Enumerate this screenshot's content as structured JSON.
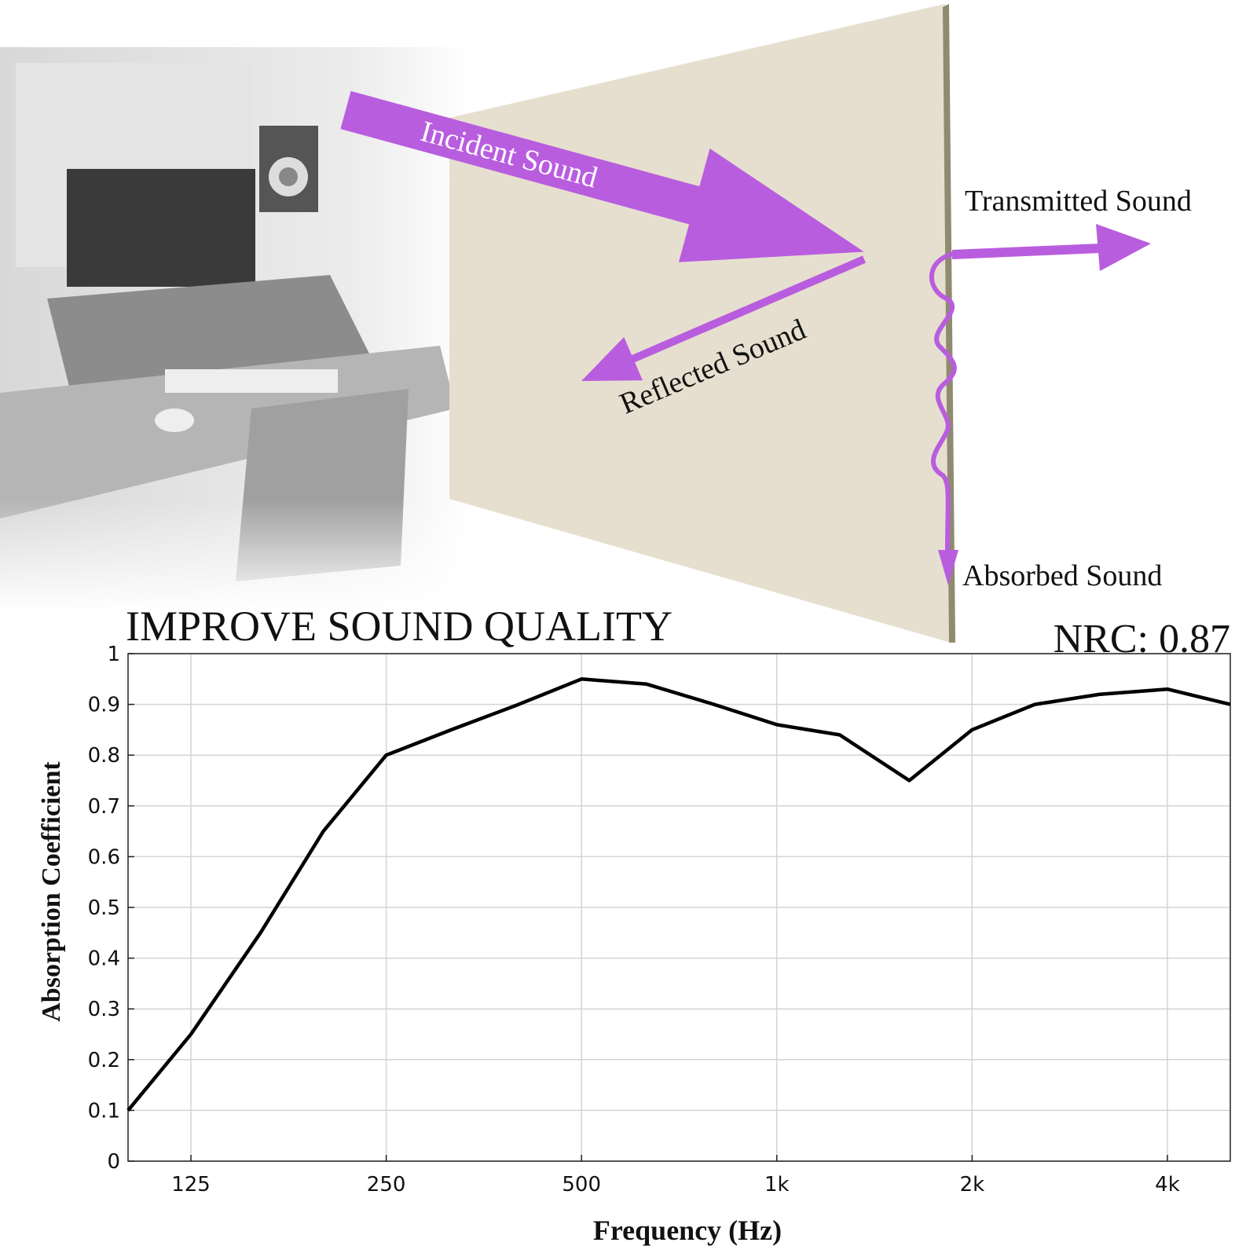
{
  "diagram": {
    "incident": "Incident Sound",
    "transmitted": "Transmitted Sound",
    "reflected": "Reflected Sound",
    "absorbed": "Absorbed Sound"
  },
  "chart_data": {
    "type": "line",
    "title": "IMPROVE SOUND QUALITY",
    "annotation": "NRC: 0.87",
    "x_label": "Frequency (Hz)",
    "y_label": "Absorption Coefficient",
    "x": [
      100,
      125,
      160,
      200,
      250,
      315,
      400,
      500,
      630,
      800,
      1000,
      1250,
      1600,
      2000,
      2500,
      3150,
      4000,
      5000
    ],
    "values": [
      0.1,
      0.25,
      0.45,
      0.65,
      0.8,
      0.85,
      0.9,
      0.95,
      0.94,
      0.9,
      0.86,
      0.84,
      0.75,
      0.85,
      0.9,
      0.92,
      0.93,
      0.9
    ],
    "color": "#000000",
    "xscale": "log",
    "grid": true,
    "xlim": [
      100,
      5000
    ],
    "xticks": [
      125,
      250,
      500,
      {
        "value": 1000,
        "label": "1k"
      },
      {
        "value": 2000,
        "label": "2k"
      },
      {
        "value": 4000,
        "label": "4k"
      }
    ],
    "ylim": [
      0,
      1
    ],
    "yticks": [
      0,
      0.1,
      0.2,
      0.3,
      0.4,
      0.5,
      0.6,
      0.7,
      0.8,
      0.9,
      1
    ]
  }
}
